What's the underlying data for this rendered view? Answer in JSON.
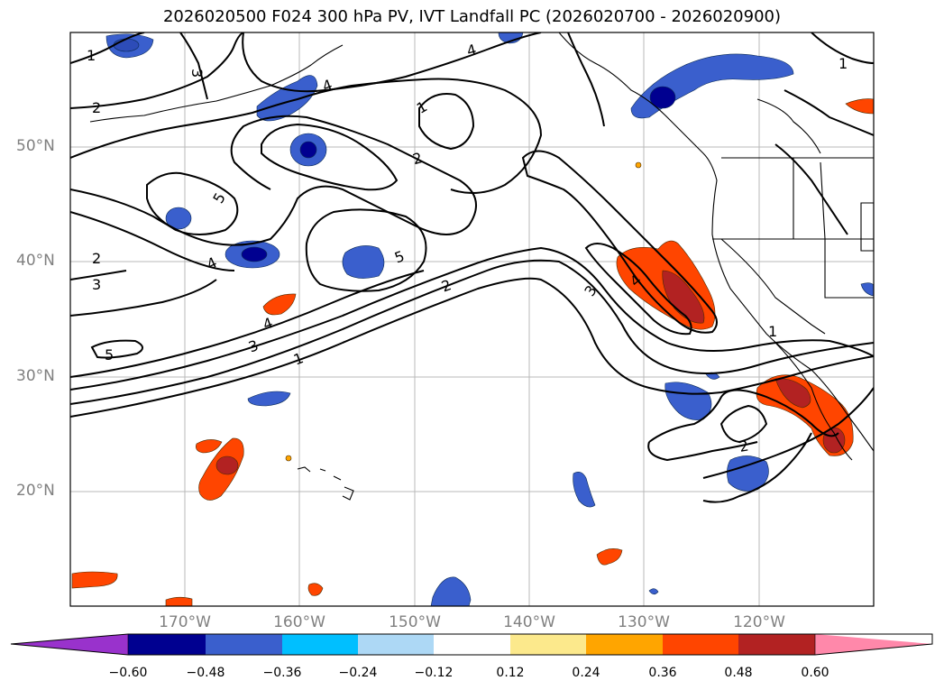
{
  "title": "2026020500 F024 300 hPa PV, IVT Landfall PC (2026020700 - 2026020900)",
  "map": {
    "lat_labels": [
      "50°N",
      "40°N",
      "30°N",
      "20°N"
    ],
    "lon_labels": [
      "170°W",
      "160°W",
      "150°W",
      "140°W",
      "130°W",
      "120°W"
    ],
    "contour_labels": [
      "1",
      "3",
      "2",
      "4",
      "4",
      "1",
      "2",
      "5",
      "2",
      "4",
      "3",
      "5",
      "2",
      "3",
      "4",
      "4",
      "3",
      "1",
      "5",
      "1",
      "2",
      "1"
    ],
    "gridline_color": "#b0b0b0"
  },
  "colorbar": {
    "ticks": [
      "−0.60",
      "−0.48",
      "−0.36",
      "−0.24",
      "−0.12",
      "0.12",
      "0.24",
      "0.36",
      "0.48",
      "0.60"
    ],
    "colors": [
      "#9932cc",
      "#000090",
      "#3a5fcd",
      "#00bfff",
      "#add8f5",
      "#ffffff",
      "#fce98c",
      "#ffa500",
      "#ff4500",
      "#b22222",
      "#ff88aa"
    ]
  }
}
